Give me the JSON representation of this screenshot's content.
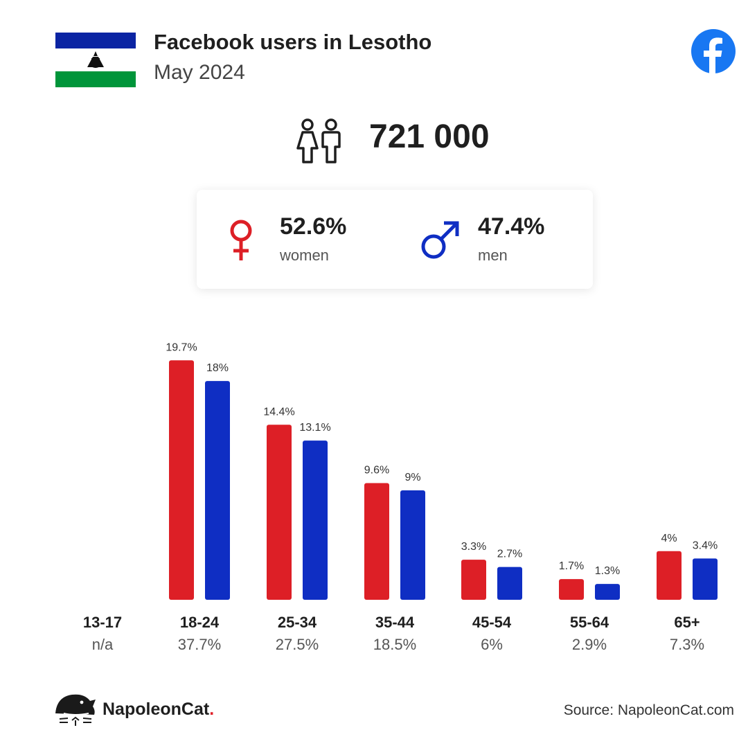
{
  "header": {
    "title": "Facebook users in Lesotho",
    "subtitle": "May 2024"
  },
  "total_users": "721 000",
  "gender": {
    "women": {
      "pct": "52.6%",
      "label": "women"
    },
    "men": {
      "pct": "47.4%",
      "label": "men"
    }
  },
  "colors": {
    "women": "#dd1f26",
    "men": "#0f2ec3",
    "flag_blue": "#0b24a3",
    "flag_green": "#00953a",
    "facebook": "#1877f2"
  },
  "chart_data": {
    "type": "bar",
    "categories": [
      "13-17",
      "18-24",
      "25-34",
      "35-44",
      "45-54",
      "55-64",
      "65+"
    ],
    "category_totals": [
      "n/a",
      "37.7%",
      "27.5%",
      "18.5%",
      "6%",
      "2.9%",
      "7.3%"
    ],
    "series": [
      {
        "name": "women",
        "values": [
          null,
          19.7,
          14.4,
          9.6,
          3.3,
          1.7,
          4
        ]
      },
      {
        "name": "men",
        "values": [
          null,
          18,
          13.1,
          9,
          2.7,
          1.3,
          3.4
        ]
      }
    ],
    "value_labels": {
      "women": [
        "",
        "19.7%",
        "14.4%",
        "9.6%",
        "3.3%",
        "1.7%",
        "4%"
      ],
      "men": [
        "",
        "18%",
        "13.1%",
        "9%",
        "2.7%",
        "1.3%",
        "3.4%"
      ]
    },
    "ylim": [
      0,
      20
    ],
    "grid": false
  },
  "footer": {
    "brand_name": "NapoleonCat",
    "brand_dot": ".",
    "source": "Source: NapoleonCat.com"
  }
}
